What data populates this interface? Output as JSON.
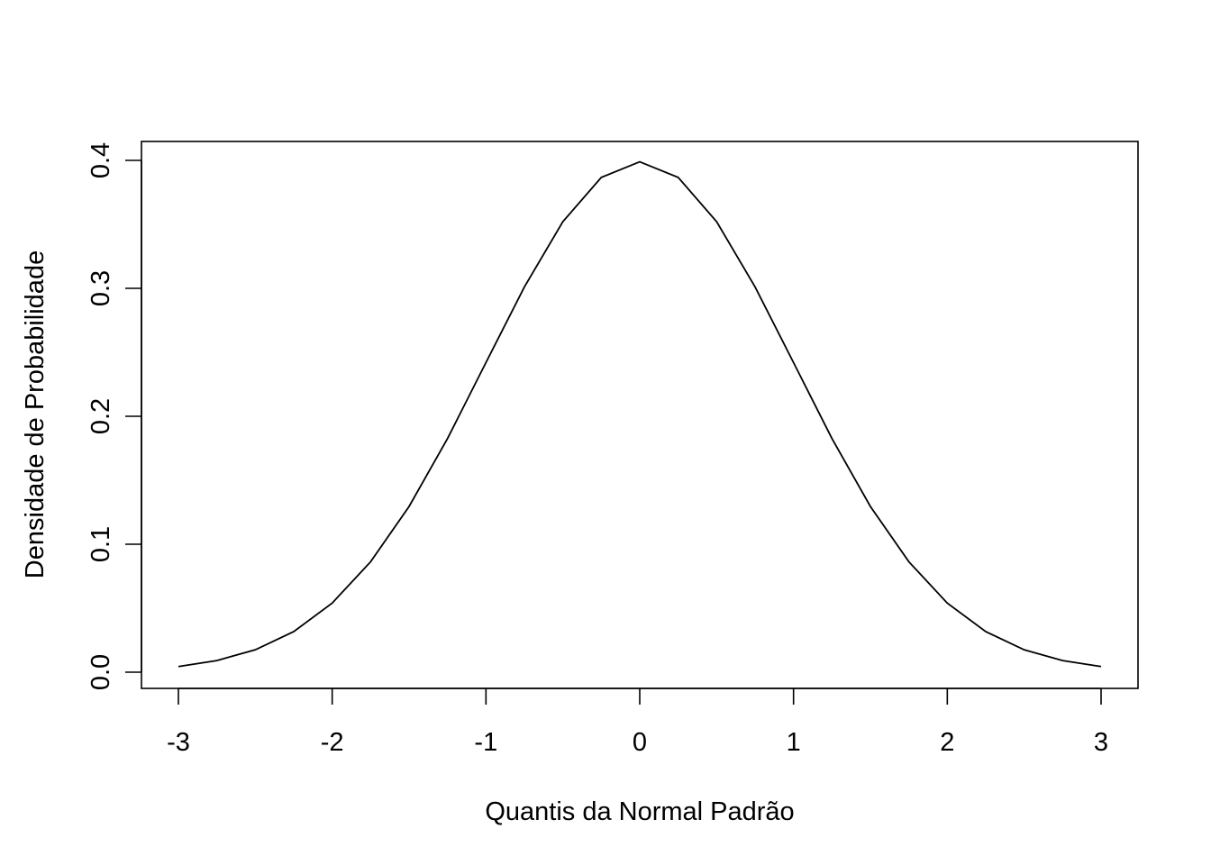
{
  "chart_data": {
    "type": "line",
    "title": "",
    "xlabel": "Quantis da Normal Padrão",
    "ylabel": "Densidade de Probabilidade",
    "xlim": [
      -3,
      3
    ],
    "ylim": [
      0.0,
      0.4
    ],
    "x_ticks": [
      -3,
      -2,
      -1,
      0,
      1,
      2,
      3
    ],
    "x_tick_labels": [
      "-3",
      "-2",
      "-1",
      "0",
      "1",
      "2",
      "3"
    ],
    "y_ticks": [
      0.0,
      0.1,
      0.2,
      0.3,
      0.4
    ],
    "y_tick_labels": [
      "0.0",
      "0.1",
      "0.2",
      "0.3",
      "0.4"
    ],
    "grid": false,
    "legend": "none",
    "series": [
      {
        "color": "#000000",
        "x": [
          -3.0,
          -2.75,
          -2.5,
          -2.25,
          -2.0,
          -1.75,
          -1.5,
          -1.25,
          -1.0,
          -0.75,
          -0.5,
          -0.25,
          0.0,
          0.25,
          0.5,
          0.75,
          1.0,
          1.25,
          1.5,
          1.75,
          2.0,
          2.25,
          2.5,
          2.75,
          3.0
        ],
        "values": [
          0.0044,
          0.0091,
          0.0175,
          0.0317,
          0.054,
          0.0863,
          0.1295,
          0.1826,
          0.242,
          0.3011,
          0.3521,
          0.3867,
          0.3989,
          0.3867,
          0.3521,
          0.3011,
          0.242,
          0.1826,
          0.1295,
          0.0863,
          0.054,
          0.0317,
          0.0175,
          0.0091,
          0.0044
        ]
      }
    ]
  }
}
